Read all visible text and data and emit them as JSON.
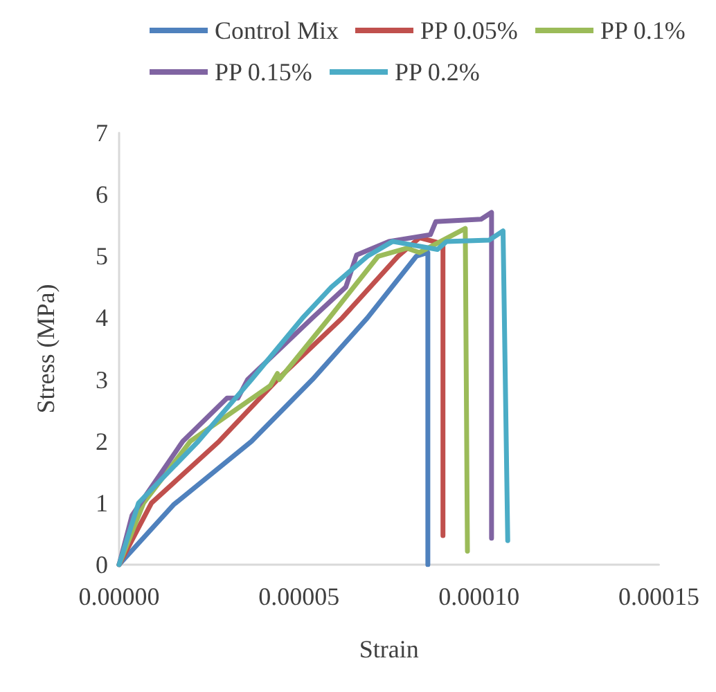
{
  "chart_data": {
    "type": "line",
    "xlabel": "Strain",
    "ylabel": "Stress (MPa)",
    "xlim": [
      0,
      0.00015
    ],
    "ylim": [
      0,
      7
    ],
    "xticks": [
      {
        "value": 0,
        "label": "0.00000"
      },
      {
        "value": 5e-05,
        "label": "0.00005"
      },
      {
        "value": 0.0001,
        "label": "0.00010"
      },
      {
        "value": 0.00015,
        "label": "0.00015"
      }
    ],
    "yticks": [
      0,
      1,
      2,
      3,
      4,
      5,
      6,
      7
    ],
    "grid": false,
    "legend": "top",
    "marker": "none",
    "line_style": "solid",
    "series": [
      {
        "name": "Control Mix",
        "color": "#4f81bd",
        "x": [
          0,
          1.51e-05,
          3.68e-05,
          5.37e-05,
          6.9e-05,
          8.26e-05,
          8.58e-05,
          8.58e-05
        ],
        "values": [
          0,
          0.97,
          2,
          3,
          4,
          5,
          5.06,
          0
        ]
      },
      {
        "name": "PP 0.05%",
        "color": "#c0504d",
        "x": [
          0,
          9e-06,
          2.78e-05,
          4.4e-05,
          6.2e-05,
          7.75e-05,
          8.35e-05,
          9e-05,
          9e-05
        ],
        "values": [
          0,
          1,
          2,
          3,
          4,
          5,
          5.3,
          5.2,
          0.47
        ]
      },
      {
        "name": "PP 0.1%",
        "color": "#9bbb59",
        "x": [
          0,
          6.8e-06,
          1.98e-05,
          4.2e-05,
          4.4e-05,
          4.45e-05,
          5.84e-05,
          7.2e-05,
          8e-05,
          8.35e-05,
          9.62e-05,
          9.68e-05
        ],
        "values": [
          0,
          1,
          2,
          2.9,
          3.1,
          3,
          4,
          5,
          5.13,
          5.06,
          5.45,
          0.22
        ]
      },
      {
        "name": "PP 0.15%",
        "color": "#8064a2",
        "x": [
          0,
          3.6e-06,
          1.77e-05,
          3e-05,
          3.3e-05,
          3.57e-05,
          5.37e-05,
          6.3e-05,
          6.6e-05,
          7.5e-05,
          8.65e-05,
          8.8e-05,
          0.0001006,
          0.0001035,
          0.0001035
        ],
        "values": [
          0,
          0.8,
          2,
          2.7,
          2.7,
          3,
          4,
          4.5,
          5.02,
          5.24,
          5.35,
          5.56,
          5.6,
          5.71,
          0.43
        ]
      },
      {
        "name": "PP 0.2%",
        "color": "#4bacc6",
        "x": [
          0,
          5.4e-06,
          2.2e-05,
          3.68e-05,
          5.1e-05,
          5.9e-05,
          6.9e-05,
          7.6e-05,
          8.85e-05,
          9.1e-05,
          0.0001028,
          0.0001067,
          0.000108
        ],
        "values": [
          0,
          1,
          2,
          3,
          4,
          4.5,
          5,
          5.24,
          5.11,
          5.24,
          5.26,
          5.41,
          0.39
        ]
      }
    ]
  }
}
